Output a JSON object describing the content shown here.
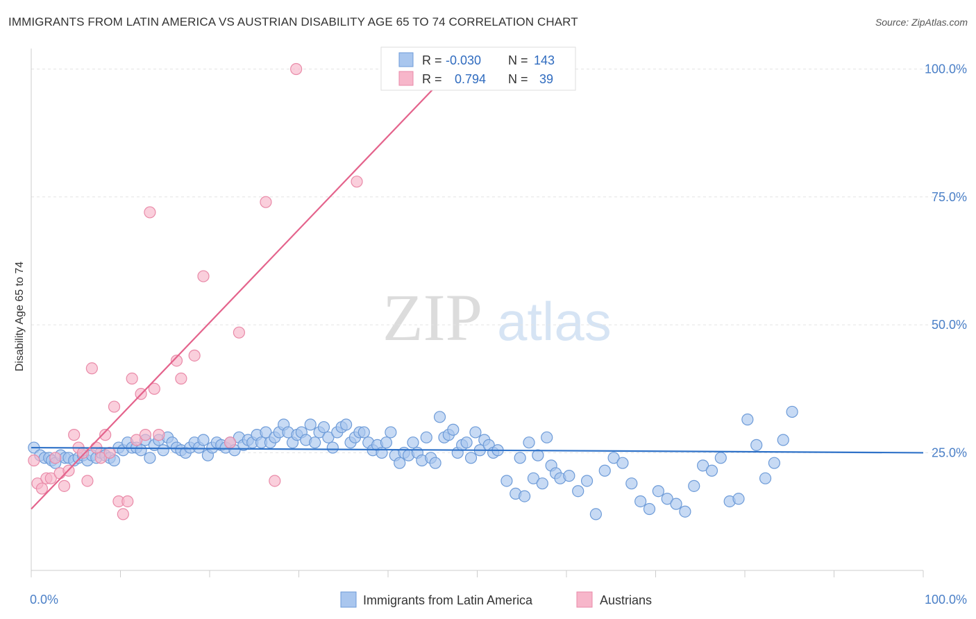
{
  "title": "IMMIGRANTS FROM LATIN AMERICA VS AUSTRIAN DISABILITY AGE 65 TO 74 CORRELATION CHART",
  "source": "Source: ZipAtlas.com",
  "watermark": {
    "zip": "ZIP",
    "atlas": "atlas"
  },
  "legend": {
    "rows": [
      {
        "r_label": "R =",
        "r_value": "-0.030",
        "n_label": "N =",
        "n_value": "143",
        "color": "#a9c6ee"
      },
      {
        "r_label": "R =",
        "r_value": "0.794",
        "n_label": "N =",
        "n_value": "39",
        "color": "#f7b6ca"
      }
    ]
  },
  "chart_data": {
    "type": "scatter",
    "title": "IMMIGRANTS FROM LATIN AMERICA VS AUSTRIAN DISABILITY AGE 65 TO 74 CORRELATION CHART",
    "xlabel": "",
    "ylabel": "Disability Age 65 to 74",
    "xlim": [
      0,
      100
    ],
    "ylim": [
      2,
      104
    ],
    "x_tick_labels": [
      "0.0%",
      "100.0%"
    ],
    "y_ticks": [
      25,
      50,
      75,
      100
    ],
    "y_tick_labels": [
      "25.0%",
      "50.0%",
      "75.0%",
      "100.0%"
    ],
    "grid": true,
    "legend_position": "bottom",
    "colors": {
      "blue_fill": "#a9c6ee",
      "blue_stroke": "#6d9bd8",
      "blue_line": "#2f72c8",
      "pink_fill": "#f7b6ca",
      "pink_stroke": "#e98aa8",
      "pink_line": "#e4638c",
      "tick_text": "#4a7fc7"
    },
    "series": [
      {
        "name": "Immigrants from Latin America",
        "color": "#a9c6ee",
        "trend": {
          "x": [
            0,
            100
          ],
          "y": [
            26.0,
            25.0
          ]
        },
        "points": [
          [
            0.3,
            26
          ],
          [
            1,
            24.5
          ],
          [
            1.5,
            24
          ],
          [
            2,
            24
          ],
          [
            2.3,
            23.5
          ],
          [
            2.7,
            23
          ],
          [
            3.3,
            24.5
          ],
          [
            3.8,
            24
          ],
          [
            4.2,
            24
          ],
          [
            4.8,
            23.5
          ],
          [
            5.3,
            24
          ],
          [
            5.8,
            24.5
          ],
          [
            6.3,
            23.5
          ],
          [
            6.8,
            24.5
          ],
          [
            7.3,
            24
          ],
          [
            7.8,
            25
          ],
          [
            8.3,
            24.5
          ],
          [
            8.8,
            24
          ],
          [
            9.3,
            23.5
          ],
          [
            9.8,
            26
          ],
          [
            10.3,
            25.5
          ],
          [
            10.8,
            27
          ],
          [
            11.3,
            26
          ],
          [
            11.8,
            26
          ],
          [
            12.3,
            25.5
          ],
          [
            12.8,
            27.5
          ],
          [
            13.3,
            24
          ],
          [
            13.8,
            26.5
          ],
          [
            14.3,
            27.5
          ],
          [
            14.8,
            25.5
          ],
          [
            15.3,
            28
          ],
          [
            15.8,
            27
          ],
          [
            16.3,
            26
          ],
          [
            16.8,
            25.5
          ],
          [
            17.3,
            25
          ],
          [
            17.8,
            26
          ],
          [
            18.3,
            27
          ],
          [
            18.8,
            26
          ],
          [
            19.3,
            27.5
          ],
          [
            19.8,
            24.5
          ],
          [
            20.3,
            26
          ],
          [
            20.8,
            27
          ],
          [
            21.3,
            26.5
          ],
          [
            21.8,
            26
          ],
          [
            22.3,
            27
          ],
          [
            22.8,
            25.5
          ],
          [
            23.3,
            28
          ],
          [
            23.8,
            26.5
          ],
          [
            24.3,
            27.5
          ],
          [
            24.8,
            27
          ],
          [
            25.3,
            28.5
          ],
          [
            25.8,
            27
          ],
          [
            26.3,
            29
          ],
          [
            26.8,
            27
          ],
          [
            27.3,
            28
          ],
          [
            27.8,
            29
          ],
          [
            28.3,
            30.5
          ],
          [
            28.8,
            29
          ],
          [
            29.3,
            27
          ],
          [
            29.8,
            28.5
          ],
          [
            30.3,
            29
          ],
          [
            30.8,
            27.5
          ],
          [
            31.3,
            30.5
          ],
          [
            31.8,
            27
          ],
          [
            32.3,
            29
          ],
          [
            32.8,
            30
          ],
          [
            33.3,
            28
          ],
          [
            33.8,
            26
          ],
          [
            34.3,
            29
          ],
          [
            34.8,
            30
          ],
          [
            35.3,
            30.5
          ],
          [
            35.8,
            27
          ],
          [
            36.3,
            28
          ],
          [
            36.8,
            29
          ],
          [
            37.3,
            29
          ],
          [
            37.8,
            27
          ],
          [
            38.3,
            25.5
          ],
          [
            38.8,
            26.5
          ],
          [
            39.3,
            25
          ],
          [
            39.8,
            27
          ],
          [
            40.3,
            29
          ],
          [
            40.8,
            24.5
          ],
          [
            41.3,
            23
          ],
          [
            41.8,
            25
          ],
          [
            42.3,
            24.5
          ],
          [
            42.8,
            27
          ],
          [
            43.3,
            25
          ],
          [
            43.8,
            23.5
          ],
          [
            44.3,
            28
          ],
          [
            44.8,
            24
          ],
          [
            45.3,
            23
          ],
          [
            45.8,
            32
          ],
          [
            46.3,
            28
          ],
          [
            46.8,
            28.5
          ],
          [
            47.3,
            29.5
          ],
          [
            47.8,
            25
          ],
          [
            48.3,
            26.5
          ],
          [
            48.8,
            27
          ],
          [
            49.3,
            24
          ],
          [
            49.8,
            29
          ],
          [
            50.3,
            25.5
          ],
          [
            50.8,
            27.5
          ],
          [
            51.3,
            26.5
          ],
          [
            51.8,
            25
          ],
          [
            52.3,
            25.5
          ],
          [
            53.3,
            19.5
          ],
          [
            54.3,
            17
          ],
          [
            55.3,
            16.5
          ],
          [
            56.3,
            20
          ],
          [
            57.3,
            19
          ],
          [
            58.3,
            22.5
          ],
          [
            58.8,
            21
          ],
          [
            59.3,
            20
          ],
          [
            60.3,
            20.5
          ],
          [
            61.3,
            17.5
          ],
          [
            62.3,
            19.5
          ],
          [
            63.3,
            13
          ],
          [
            64.3,
            21.5
          ],
          [
            65.3,
            24
          ],
          [
            66.3,
            23
          ],
          [
            67.3,
            19
          ],
          [
            68.3,
            15.5
          ],
          [
            69.3,
            14
          ],
          [
            70.3,
            17.5
          ],
          [
            71.3,
            16
          ],
          [
            72.3,
            15
          ],
          [
            73.3,
            13.5
          ],
          [
            74.3,
            18.5
          ],
          [
            75.3,
            22.5
          ],
          [
            76.3,
            21.5
          ],
          [
            77.3,
            24
          ],
          [
            78.3,
            15.5
          ],
          [
            79.3,
            16
          ],
          [
            80.3,
            31.5
          ],
          [
            81.3,
            26.5
          ],
          [
            82.3,
            20
          ],
          [
            83.3,
            23
          ],
          [
            84.3,
            27.5
          ],
          [
            85.3,
            33
          ],
          [
            54.8,
            24
          ],
          [
            55.8,
            27
          ],
          [
            56.8,
            24.5
          ],
          [
            57.8,
            28
          ]
        ]
      },
      {
        "name": "Austrians",
        "color": "#f7b6ca",
        "trend": {
          "x": [
            0,
            47.2
          ],
          "y": [
            14.0,
            100.0
          ]
        },
        "points": [
          [
            0.3,
            23.5
          ],
          [
            0.7,
            19
          ],
          [
            1.2,
            18
          ],
          [
            1.7,
            20
          ],
          [
            2.2,
            20
          ],
          [
            2.7,
            24
          ],
          [
            3.2,
            21
          ],
          [
            3.7,
            18.5
          ],
          [
            4.2,
            21.5
          ],
          [
            4.8,
            28.5
          ],
          [
            5.3,
            26
          ],
          [
            5.8,
            25
          ],
          [
            6.3,
            19.5
          ],
          [
            6.8,
            41.5
          ],
          [
            7.3,
            26
          ],
          [
            7.8,
            24
          ],
          [
            8.3,
            28.5
          ],
          [
            8.8,
            25
          ],
          [
            9.3,
            34
          ],
          [
            9.8,
            15.5
          ],
          [
            10.3,
            13
          ],
          [
            10.8,
            15.5
          ],
          [
            11.3,
            39.5
          ],
          [
            11.8,
            27.5
          ],
          [
            12.3,
            36.5
          ],
          [
            12.8,
            28.5
          ],
          [
            13.3,
            72
          ],
          [
            13.8,
            37.5
          ],
          [
            14.3,
            28.5
          ],
          [
            16.3,
            43
          ],
          [
            16.8,
            39.5
          ],
          [
            18.3,
            44
          ],
          [
            19.3,
            59.5
          ],
          [
            22.3,
            27
          ],
          [
            23.3,
            48.5
          ],
          [
            26.3,
            74
          ],
          [
            27.3,
            19.5
          ],
          [
            29.7,
            100
          ],
          [
            36.5,
            78
          ]
        ]
      }
    ]
  }
}
